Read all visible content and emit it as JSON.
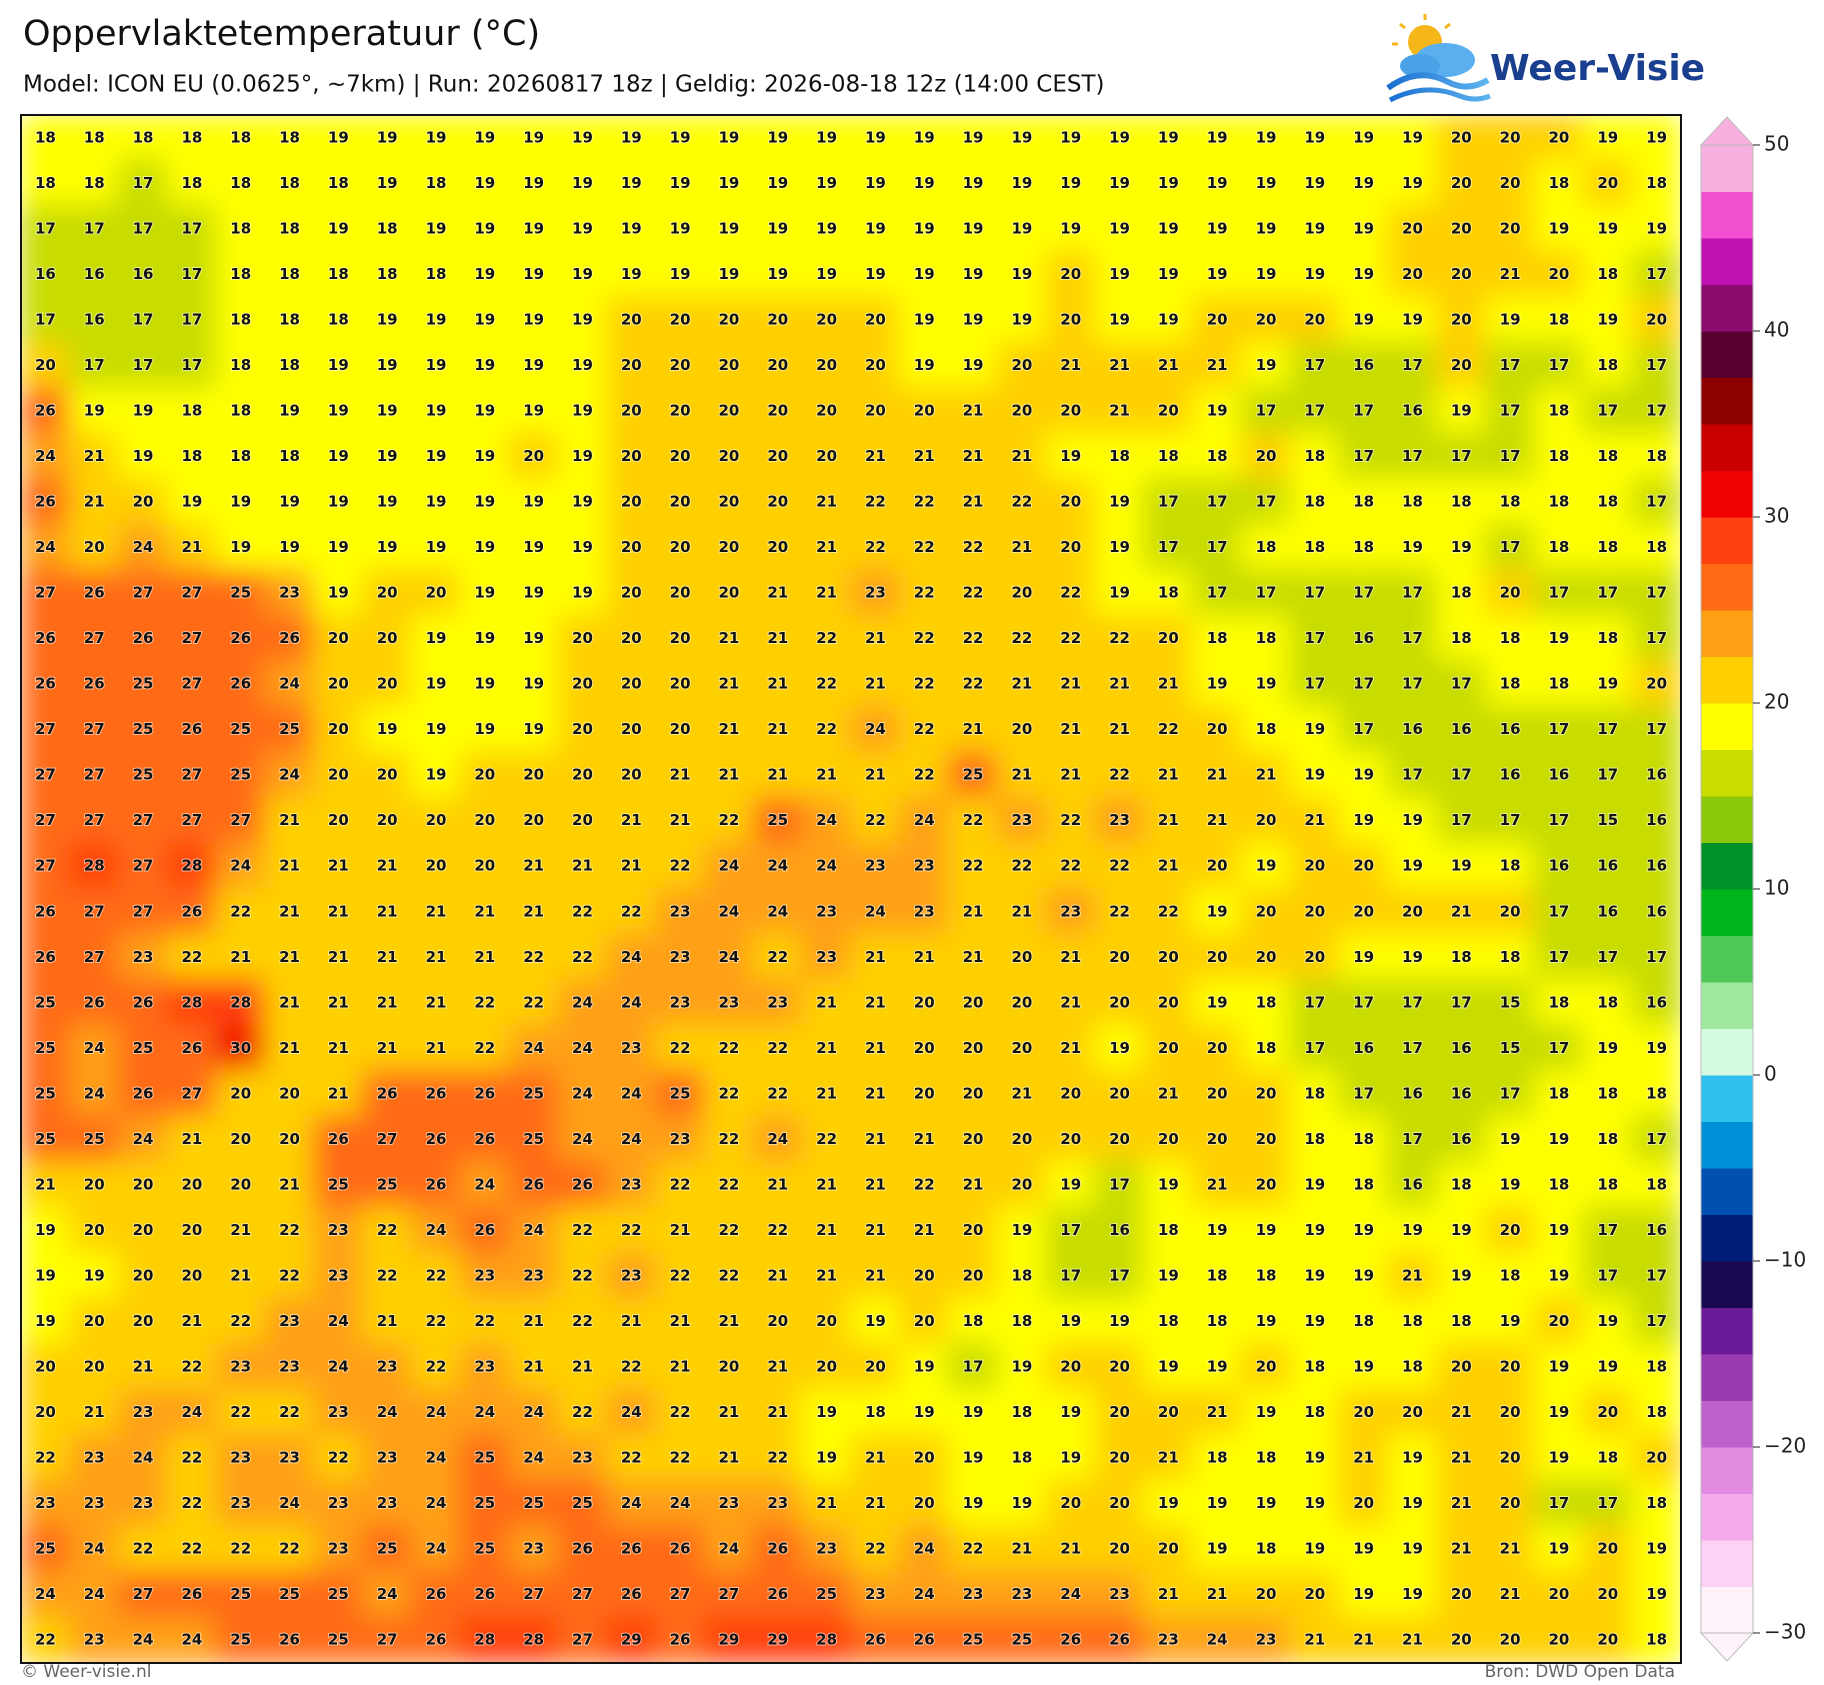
{
  "header": {
    "title": "Oppervlaktetemperatuur (°C)",
    "subtitle": "Model: ICON EU (0.0625°, ~7km)  |  Run: 20260817 18z  |  Geldig: 2026-08-18 12z (14:00 CEST)",
    "logo": "Weer-Visie"
  },
  "grid": {
    "rows": [
      [
        18,
        18,
        18,
        18,
        18,
        18,
        19,
        19,
        19,
        19,
        19,
        19,
        19,
        19,
        19,
        19,
        19,
        19,
        19,
        19,
        19,
        19,
        19,
        19,
        19,
        19,
        19,
        19,
        19,
        20,
        20,
        20,
        19,
        19
      ],
      [
        18,
        18,
        17,
        18,
        18,
        18,
        18,
        19,
        18,
        19,
        19,
        19,
        19,
        19,
        19,
        19,
        19,
        19,
        19,
        19,
        19,
        19,
        19,
        19,
        19,
        19,
        19,
        19,
        19,
        20,
        20,
        18,
        20,
        18
      ],
      [
        17,
        17,
        17,
        17,
        18,
        18,
        19,
        18,
        19,
        19,
        19,
        19,
        19,
        19,
        19,
        19,
        19,
        19,
        19,
        19,
        19,
        19,
        19,
        19,
        19,
        19,
        19,
        19,
        20,
        20,
        20,
        19,
        19,
        19
      ],
      [
        16,
        16,
        16,
        17,
        18,
        18,
        18,
        18,
        18,
        19,
        19,
        19,
        19,
        19,
        19,
        19,
        19,
        19,
        19,
        19,
        19,
        20,
        19,
        19,
        19,
        19,
        19,
        19,
        20,
        20,
        21,
        20,
        18,
        17
      ],
      [
        17,
        16,
        17,
        17,
        18,
        18,
        18,
        19,
        19,
        19,
        19,
        19,
        20,
        20,
        20,
        20,
        20,
        20,
        19,
        19,
        19,
        20,
        19,
        19,
        20,
        20,
        20,
        19,
        19,
        20,
        19,
        18,
        19,
        20
      ],
      [
        20,
        17,
        17,
        17,
        18,
        18,
        19,
        19,
        19,
        19,
        19,
        19,
        20,
        20,
        20,
        20,
        20,
        20,
        19,
        19,
        20,
        21,
        21,
        21,
        21,
        19,
        17,
        16,
        17,
        20,
        17,
        17,
        18,
        17
      ],
      [
        26,
        19,
        19,
        18,
        18,
        19,
        19,
        19,
        19,
        19,
        19,
        19,
        20,
        20,
        20,
        20,
        20,
        20,
        20,
        21,
        20,
        20,
        21,
        20,
        19,
        17,
        17,
        17,
        16,
        19,
        17,
        18,
        17,
        17
      ],
      [
        24,
        21,
        19,
        18,
        18,
        18,
        19,
        19,
        19,
        19,
        20,
        19,
        20,
        20,
        20,
        20,
        20,
        21,
        21,
        21,
        21,
        19,
        18,
        18,
        18,
        20,
        18,
        17,
        17,
        17,
        17,
        18,
        18,
        18
      ],
      [
        26,
        21,
        20,
        19,
        19,
        19,
        19,
        19,
        19,
        19,
        19,
        19,
        20,
        20,
        20,
        20,
        21,
        22,
        22,
        21,
        22,
        20,
        19,
        17,
        17,
        17,
        18,
        18,
        18,
        18,
        18,
        18,
        18,
        17
      ],
      [
        24,
        20,
        24,
        21,
        19,
        19,
        19,
        19,
        19,
        19,
        19,
        19,
        20,
        20,
        20,
        20,
        21,
        22,
        22,
        22,
        21,
        20,
        19,
        17,
        17,
        18,
        18,
        18,
        19,
        19,
        17,
        18,
        18,
        18
      ],
      [
        27,
        26,
        27,
        27,
        25,
        23,
        19,
        20,
        20,
        19,
        19,
        19,
        20,
        20,
        20,
        21,
        21,
        23,
        22,
        22,
        20,
        22,
        19,
        18,
        17,
        17,
        17,
        17,
        17,
        18,
        20,
        17,
        17,
        17
      ],
      [
        26,
        27,
        26,
        27,
        26,
        26,
        20,
        20,
        19,
        19,
        19,
        20,
        20,
        20,
        21,
        21,
        22,
        21,
        22,
        22,
        22,
        22,
        22,
        20,
        18,
        18,
        17,
        16,
        17,
        18,
        18,
        19,
        18,
        17
      ],
      [
        26,
        26,
        25,
        27,
        26,
        24,
        20,
        20,
        19,
        19,
        19,
        20,
        20,
        20,
        21,
        21,
        22,
        21,
        22,
        22,
        21,
        21,
        21,
        21,
        19,
        19,
        17,
        17,
        17,
        17,
        18,
        18,
        19,
        20
      ],
      [
        27,
        27,
        25,
        26,
        25,
        25,
        20,
        19,
        19,
        19,
        19,
        20,
        20,
        20,
        21,
        21,
        22,
        24,
        22,
        21,
        20,
        21,
        21,
        22,
        20,
        18,
        19,
        17,
        16,
        16,
        16,
        17,
        17,
        17
      ],
      [
        27,
        27,
        25,
        27,
        25,
        24,
        20,
        20,
        19,
        20,
        20,
        20,
        20,
        21,
        21,
        21,
        21,
        21,
        22,
        25,
        21,
        21,
        22,
        21,
        21,
        21,
        19,
        19,
        17,
        17,
        16,
        16,
        17,
        16
      ],
      [
        27,
        27,
        27,
        27,
        27,
        21,
        20,
        20,
        20,
        20,
        20,
        20,
        21,
        21,
        22,
        25,
        24,
        22,
        24,
        22,
        23,
        22,
        23,
        21,
        21,
        20,
        21,
        19,
        19,
        17,
        17,
        17,
        15,
        16
      ],
      [
        27,
        28,
        27,
        28,
        24,
        21,
        21,
        21,
        20,
        20,
        21,
        21,
        21,
        22,
        24,
        24,
        24,
        23,
        23,
        22,
        22,
        22,
        22,
        21,
        20,
        19,
        20,
        20,
        19,
        19,
        18,
        16,
        16,
        16
      ],
      [
        26,
        27,
        27,
        26,
        22,
        21,
        21,
        21,
        21,
        21,
        21,
        22,
        22,
        23,
        24,
        24,
        23,
        24,
        23,
        21,
        21,
        23,
        22,
        22,
        19,
        20,
        20,
        20,
        20,
        21,
        20,
        17,
        16,
        16
      ],
      [
        26,
        27,
        23,
        22,
        21,
        21,
        21,
        21,
        21,
        21,
        22,
        22,
        24,
        23,
        24,
        22,
        23,
        21,
        21,
        21,
        20,
        21,
        20,
        20,
        20,
        20,
        20,
        19,
        19,
        18,
        18,
        17,
        17,
        17
      ],
      [
        25,
        26,
        26,
        28,
        28,
        21,
        21,
        21,
        21,
        22,
        22,
        24,
        24,
        23,
        23,
        23,
        21,
        21,
        20,
        20,
        20,
        21,
        20,
        20,
        19,
        18,
        17,
        17,
        17,
        17,
        15,
        18,
        18,
        16
      ],
      [
        25,
        24,
        25,
        26,
        30,
        21,
        21,
        21,
        21,
        22,
        24,
        24,
        23,
        22,
        22,
        22,
        21,
        21,
        20,
        20,
        20,
        21,
        19,
        20,
        20,
        18,
        17,
        16,
        17,
        16,
        15,
        17,
        19,
        19
      ],
      [
        25,
        24,
        26,
        27,
        20,
        20,
        21,
        26,
        26,
        26,
        25,
        24,
        24,
        25,
        22,
        22,
        21,
        21,
        20,
        20,
        21,
        20,
        20,
        21,
        20,
        20,
        18,
        17,
        16,
        16,
        17,
        18,
        18,
        18
      ],
      [
        25,
        25,
        24,
        21,
        20,
        20,
        26,
        27,
        26,
        26,
        25,
        24,
        24,
        23,
        22,
        24,
        22,
        21,
        21,
        20,
        20,
        20,
        20,
        20,
        20,
        20,
        18,
        18,
        17,
        16,
        19,
        19,
        18,
        17
      ],
      [
        21,
        20,
        20,
        20,
        20,
        21,
        25,
        25,
        26,
        24,
        26,
        26,
        23,
        22,
        22,
        21,
        21,
        21,
        22,
        21,
        20,
        19,
        17,
        19,
        21,
        20,
        19,
        18,
        16,
        18,
        19,
        18,
        18,
        18
      ],
      [
        19,
        20,
        20,
        20,
        21,
        22,
        23,
        22,
        24,
        26,
        24,
        22,
        22,
        21,
        22,
        22,
        21,
        21,
        21,
        20,
        19,
        17,
        16,
        18,
        19,
        19,
        19,
        19,
        19,
        19,
        20,
        19,
        17,
        16
      ],
      [
        19,
        19,
        20,
        20,
        21,
        22,
        23,
        22,
        22,
        23,
        23,
        22,
        23,
        22,
        22,
        21,
        21,
        21,
        20,
        20,
        18,
        17,
        17,
        19,
        18,
        18,
        19,
        19,
        21,
        19,
        18,
        19,
        17,
        17
      ],
      [
        19,
        20,
        20,
        21,
        22,
        23,
        24,
        21,
        22,
        22,
        21,
        22,
        21,
        21,
        21,
        20,
        20,
        19,
        20,
        18,
        18,
        19,
        19,
        18,
        18,
        19,
        19,
        18,
        18,
        18,
        19,
        20,
        19,
        17
      ],
      [
        20,
        20,
        21,
        22,
        23,
        23,
        24,
        23,
        22,
        23,
        21,
        21,
        22,
        21,
        20,
        21,
        20,
        20,
        19,
        17,
        19,
        20,
        20,
        19,
        19,
        20,
        18,
        19,
        18,
        20,
        20,
        19,
        19,
        18
      ],
      [
        20,
        21,
        23,
        24,
        22,
        22,
        23,
        24,
        24,
        24,
        24,
        22,
        24,
        22,
        21,
        21,
        19,
        18,
        19,
        19,
        18,
        19,
        20,
        20,
        21,
        19,
        18,
        20,
        20,
        21,
        20,
        19,
        20,
        18
      ],
      [
        22,
        23,
        24,
        22,
        23,
        23,
        22,
        23,
        24,
        25,
        24,
        23,
        22,
        22,
        21,
        22,
        19,
        21,
        20,
        19,
        18,
        19,
        20,
        21,
        18,
        18,
        19,
        21,
        19,
        21,
        20,
        19,
        18,
        20
      ],
      [
        23,
        23,
        23,
        22,
        23,
        24,
        23,
        23,
        24,
        25,
        25,
        25,
        24,
        24,
        23,
        23,
        21,
        21,
        20,
        19,
        19,
        20,
        20,
        19,
        19,
        19,
        19,
        20,
        19,
        21,
        20,
        17,
        17,
        18
      ],
      [
        25,
        24,
        22,
        22,
        22,
        22,
        23,
        25,
        24,
        25,
        23,
        26,
        26,
        26,
        24,
        26,
        23,
        22,
        24,
        22,
        21,
        21,
        20,
        20,
        19,
        18,
        19,
        19,
        19,
        21,
        21,
        19,
        20,
        19
      ],
      [
        24,
        24,
        27,
        26,
        25,
        25,
        25,
        24,
        26,
        26,
        27,
        27,
        26,
        27,
        27,
        26,
        25,
        23,
        24,
        23,
        23,
        24,
        23,
        21,
        21,
        20,
        20,
        19,
        19,
        20,
        21,
        20,
        20,
        19
      ],
      [
        22,
        23,
        24,
        24,
        25,
        26,
        25,
        27,
        26,
        28,
        28,
        27,
        29,
        26,
        29,
        29,
        28,
        26,
        26,
        25,
        25,
        26,
        26,
        23,
        24,
        23,
        21,
        21,
        21,
        20,
        20,
        20,
        20,
        18
      ]
    ]
  },
  "colorbar": {
    "lim": [
      -30,
      50
    ],
    "ticks": [
      {
        "value": -30,
        "label": "−30"
      },
      {
        "value": -20,
        "label": "−20"
      },
      {
        "value": -10,
        "label": "−10"
      },
      0,
      10,
      20,
      30,
      40,
      50
    ],
    "colors": [
      "#fef2fb",
      "#fdd2f6",
      "#f5aaec",
      "#e08ae0",
      "#c060cc",
      "#9a3cb0",
      "#6a1a98",
      "#1a0850",
      "#001e78",
      "#0050b0",
      "#0090d8",
      "#30c0f0",
      "#d5fbe0",
      "#a0eaa0",
      "#50c858",
      "#00b41c",
      "#00902a",
      "#8cc80a",
      "#c8dc00",
      "#ffff00",
      "#ffd000",
      "#ffa014",
      "#ff6a14",
      "#ff4010",
      "#f00000",
      "#c80000",
      "#8c0000",
      "#580030",
      "#8c0a6e",
      "#c010b0",
      "#f050d0",
      "#f8b0e0"
    ]
  },
  "footer": {
    "left": "© Weer-visie.nl",
    "right": "Bron: DWD Open Data"
  }
}
